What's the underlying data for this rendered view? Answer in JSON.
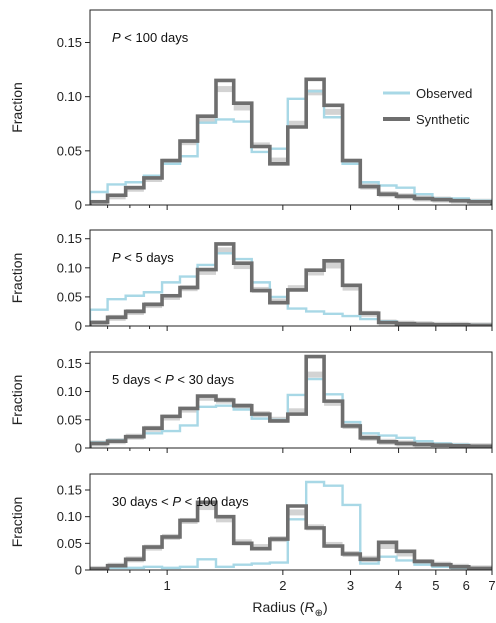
{
  "colors": {
    "observed": "#a8d8e6",
    "synthetic": "#6e6e6e",
    "band": "#c8c8c8"
  },
  "legend": {
    "observed": "Observed",
    "synthetic": "Synthetic"
  },
  "x_axis": {
    "label_prefix": "Radius (",
    "label_symbol": "R",
    "label_sub": "⊕",
    "label_suffix": ")",
    "ticks": [
      "1",
      "2",
      "3",
      "4",
      "5",
      "6",
      "7"
    ]
  },
  "chart_data": [
    {
      "type": "line",
      "label_parts": [
        [
          "P",
          true
        ],
        [
          " < 100 days",
          false
        ]
      ],
      "ylabel": "Fraction",
      "ylim": [
        0,
        0.18
      ],
      "yticks": [
        "0",
        "0.05",
        "0.10",
        "0.15"
      ],
      "xscale": "log",
      "xlim": [
        0.63,
        7.0
      ],
      "bin_edges": [
        0.63,
        0.7,
        0.78,
        0.87,
        0.97,
        1.08,
        1.2,
        1.34,
        1.49,
        1.66,
        1.85,
        2.06,
        2.3,
        2.56,
        2.86,
        3.18,
        3.55,
        3.95,
        4.4,
        4.9,
        5.47,
        6.09,
        7.0
      ],
      "series": [
        {
          "name": "Observed",
          "values": [
            0.012,
            0.019,
            0.021,
            0.027,
            0.038,
            0.045,
            0.076,
            0.079,
            0.077,
            0.049,
            0.052,
            0.098,
            0.105,
            0.081,
            0.038,
            0.021,
            0.018,
            0.016,
            0.01,
            0.006,
            0.006,
            0.004
          ]
        },
        {
          "name": "Synthetic",
          "values": [
            0.003,
            0.009,
            0.016,
            0.025,
            0.041,
            0.059,
            0.082,
            0.115,
            0.094,
            0.054,
            0.038,
            0.072,
            0.116,
            0.092,
            0.041,
            0.017,
            0.01,
            0.008,
            0.006,
            0.005,
            0.004,
            0.003
          ]
        }
      ],
      "band": [
        0.002,
        0.008,
        0.015,
        0.024,
        0.04,
        0.058,
        0.079,
        0.107,
        0.09,
        0.055,
        0.041,
        0.075,
        0.104,
        0.086,
        0.04,
        0.017,
        0.01,
        0.008,
        0.006,
        0.005,
        0.004,
        0.003
      ]
    },
    {
      "type": "line",
      "label_parts": [
        [
          "P",
          true
        ],
        [
          " < 5 days",
          false
        ]
      ],
      "ylabel": "Fraction",
      "ylim": [
        0,
        0.165
      ],
      "yticks": [
        "0",
        "0.05",
        "0.10",
        "0.15"
      ],
      "xscale": "log",
      "xlim": [
        0.63,
        7.0
      ],
      "bin_edges": [
        0.63,
        0.7,
        0.78,
        0.87,
        0.97,
        1.08,
        1.2,
        1.34,
        1.49,
        1.66,
        1.85,
        2.06,
        2.3,
        2.56,
        2.86,
        3.18,
        3.55,
        3.95,
        4.4,
        4.9,
        5.47,
        6.09,
        7.0
      ],
      "series": [
        {
          "name": "Observed",
          "values": [
            0.028,
            0.046,
            0.052,
            0.058,
            0.075,
            0.085,
            0.105,
            0.125,
            0.115,
            0.075,
            0.05,
            0.03,
            0.025,
            0.021,
            0.017,
            0.012,
            0.008,
            0.004,
            0.002,
            0.002,
            0.002,
            0.002
          ]
        },
        {
          "name": "Synthetic",
          "values": [
            0.006,
            0.015,
            0.025,
            0.037,
            0.052,
            0.066,
            0.097,
            0.141,
            0.108,
            0.061,
            0.04,
            0.062,
            0.096,
            0.112,
            0.07,
            0.022,
            0.006,
            0.004,
            0.003,
            0.002,
            0.002,
            0.001
          ]
        }
      ],
      "band": [
        0.005,
        0.014,
        0.024,
        0.036,
        0.05,
        0.065,
        0.093,
        0.13,
        0.103,
        0.062,
        0.042,
        0.065,
        0.092,
        0.104,
        0.066,
        0.021,
        0.006,
        0.004,
        0.003,
        0.002,
        0.002,
        0.001
      ]
    },
    {
      "type": "line",
      "label_parts": [
        [
          "5 days < ",
          false
        ],
        [
          "P",
          true
        ],
        [
          " < 30 days",
          false
        ]
      ],
      "ylabel": "Fraction",
      "ylim": [
        0,
        0.17
      ],
      "yticks": [
        "0",
        "0.05",
        "0.10",
        "0.15"
      ],
      "xscale": "log",
      "xlim": [
        0.63,
        7.0
      ],
      "bin_edges": [
        0.63,
        0.7,
        0.78,
        0.87,
        0.97,
        1.08,
        1.2,
        1.34,
        1.49,
        1.66,
        1.85,
        2.06,
        2.3,
        2.56,
        2.86,
        3.18,
        3.55,
        3.95,
        4.4,
        4.9,
        5.47,
        6.09,
        7.0
      ],
      "series": [
        {
          "name": "Observed",
          "values": [
            0.01,
            0.014,
            0.02,
            0.026,
            0.03,
            0.04,
            0.073,
            0.075,
            0.068,
            0.052,
            0.05,
            0.094,
            0.122,
            0.095,
            0.046,
            0.026,
            0.022,
            0.018,
            0.012,
            0.008,
            0.006,
            0.004
          ]
        },
        {
          "name": "Synthetic",
          "values": [
            0.008,
            0.012,
            0.02,
            0.035,
            0.056,
            0.07,
            0.092,
            0.085,
            0.075,
            0.06,
            0.048,
            0.06,
            0.162,
            0.083,
            0.039,
            0.018,
            0.011,
            0.008,
            0.006,
            0.005,
            0.004,
            0.003
          ]
        }
      ],
      "band": [
        0.008,
        0.012,
        0.02,
        0.034,
        0.054,
        0.068,
        0.089,
        0.084,
        0.074,
        0.06,
        0.05,
        0.065,
        0.13,
        0.08,
        0.039,
        0.018,
        0.011,
        0.008,
        0.006,
        0.005,
        0.004,
        0.003
      ]
    },
    {
      "type": "line",
      "label_parts": [
        [
          "30 days < ",
          false
        ],
        [
          "P",
          true
        ],
        [
          " < 100 days",
          false
        ]
      ],
      "ylabel": "Fraction",
      "ylim": [
        0,
        0.18
      ],
      "yticks": [
        "0",
        "0.05",
        "0.10",
        "0.15"
      ],
      "xscale": "log",
      "xlim": [
        0.63,
        7.0
      ],
      "bin_edges": [
        0.63,
        0.7,
        0.78,
        0.87,
        0.97,
        1.08,
        1.2,
        1.34,
        1.49,
        1.66,
        1.85,
        2.06,
        2.3,
        2.56,
        2.86,
        3.18,
        3.55,
        3.95,
        4.4,
        4.9,
        5.47,
        6.09,
        7.0
      ],
      "series": [
        {
          "name": "Observed",
          "values": [
            0.002,
            0.004,
            0.004,
            0.006,
            0.004,
            0.006,
            0.02,
            0.006,
            0.01,
            0.012,
            0.014,
            0.095,
            0.165,
            0.158,
            0.122,
            0.012,
            0.025,
            0.018,
            0.01,
            0.006,
            0.004,
            0.002
          ]
        },
        {
          "name": "Synthetic",
          "values": [
            0.002,
            0.008,
            0.02,
            0.043,
            0.062,
            0.093,
            0.127,
            0.1,
            0.05,
            0.04,
            0.058,
            0.12,
            0.079,
            0.045,
            0.03,
            0.02,
            0.052,
            0.035,
            0.016,
            0.01,
            0.006,
            0.003
          ]
        }
      ],
      "band": [
        0.002,
        0.008,
        0.02,
        0.042,
        0.062,
        0.092,
        0.118,
        0.095,
        0.052,
        0.043,
        0.058,
        0.108,
        0.08,
        0.047,
        0.03,
        0.021,
        0.045,
        0.031,
        0.015,
        0.01,
        0.006,
        0.003
      ]
    }
  ]
}
